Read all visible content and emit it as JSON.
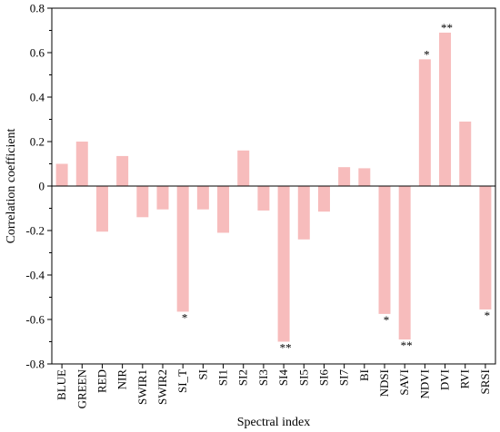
{
  "chart_data": {
    "type": "bar",
    "xlabel": "Spectral index",
    "ylabel": "Correlation coefficient",
    "ylim": [
      -0.8,
      0.8
    ],
    "yticks": [
      -0.8,
      -0.6,
      -0.4,
      -0.2,
      0,
      0.2,
      0.4,
      0.6,
      0.8
    ],
    "ytick_labels": [
      "-0.8",
      "-0.6",
      "-0.4",
      "-0.2",
      "0",
      "0.2",
      "0.4",
      "0.6",
      "0.8"
    ],
    "grid": false,
    "bar_color": "#f7bcbc",
    "categories": [
      "BLUE",
      "GREEN",
      "RED",
      "NIR",
      "SWIR1",
      "SWIR2",
      "SI_T",
      "SI",
      "SI1",
      "SI2",
      "SI3",
      "SI4",
      "SI5",
      "SI6",
      "SI7",
      "BI",
      "NDSI",
      "SAVI",
      "NDVI",
      "DVI",
      "RVI",
      "SRSI"
    ],
    "values": [
      0.1,
      0.2,
      -0.205,
      0.135,
      -0.14,
      -0.105,
      -0.565,
      -0.105,
      -0.21,
      0.16,
      -0.11,
      -0.7,
      -0.24,
      -0.115,
      0.085,
      0.08,
      -0.575,
      -0.69,
      0.57,
      0.69,
      0.29,
      -0.555
    ],
    "annotations": [
      "",
      "",
      "",
      "",
      "",
      "",
      "*",
      "",
      "",
      "",
      "",
      "**",
      "",
      "",
      "",
      "",
      "*",
      "**",
      "*",
      "**",
      "",
      "*"
    ]
  }
}
